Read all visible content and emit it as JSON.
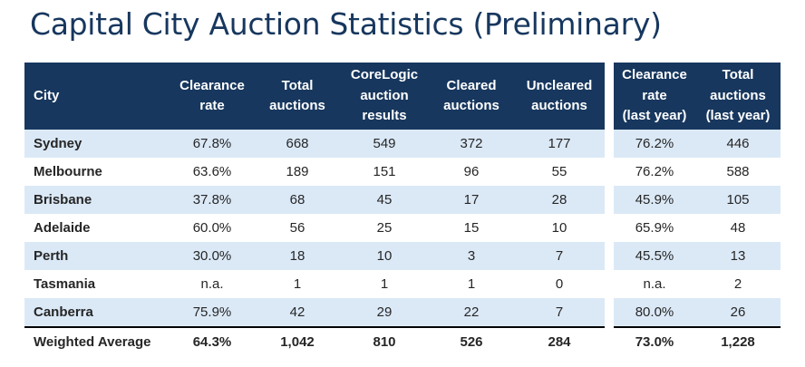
{
  "title": "Capital City Auction Statistics (Preliminary)",
  "chart_data": {
    "type": "table",
    "title": "Capital City Auction Statistics (Preliminary)",
    "headers": [
      "City",
      "Clearance\nrate",
      "Total\nauctions",
      "CoreLogic\nauction\nresults",
      "Cleared\nauctions",
      "Uncleared\nauctions"
    ],
    "last_year_headers": [
      "Clearance\nrate\n(last year)",
      "Total\nauctions\n(last year)"
    ],
    "rows": [
      {
        "city": "Sydney",
        "cells": [
          "67.8%",
          "668",
          "549",
          "372",
          "177"
        ],
        "last_year": [
          "76.2%",
          "446"
        ]
      },
      {
        "city": "Melbourne",
        "cells": [
          "63.6%",
          "189",
          "151",
          "96",
          "55"
        ],
        "last_year": [
          "76.2%",
          "588"
        ]
      },
      {
        "city": "Brisbane",
        "cells": [
          "37.8%",
          "68",
          "45",
          "17",
          "28"
        ],
        "last_year": [
          "45.9%",
          "105"
        ]
      },
      {
        "city": "Adelaide",
        "cells": [
          "60.0%",
          "56",
          "25",
          "15",
          "10"
        ],
        "last_year": [
          "65.9%",
          "48"
        ]
      },
      {
        "city": "Perth",
        "cells": [
          "30.0%",
          "18",
          "10",
          "3",
          "7"
        ],
        "last_year": [
          "45.5%",
          "13"
        ]
      },
      {
        "city": "Tasmania",
        "cells": [
          "n.a.",
          "1",
          "1",
          "1",
          "0"
        ],
        "last_year": [
          "n.a.",
          "2"
        ]
      },
      {
        "city": "Canberra",
        "cells": [
          "75.9%",
          "42",
          "29",
          "22",
          "7"
        ],
        "last_year": [
          "80.0%",
          "26"
        ]
      }
    ],
    "total": {
      "city": "Weighted Average",
      "cells": [
        "64.3%",
        "1,042",
        "810",
        "526",
        "284"
      ],
      "last_year": [
        "73.0%",
        "1,228"
      ]
    },
    "colors": {
      "header_bg": "#17375e",
      "title": "#17375e",
      "row_shade": "#dbe9f7"
    }
  }
}
